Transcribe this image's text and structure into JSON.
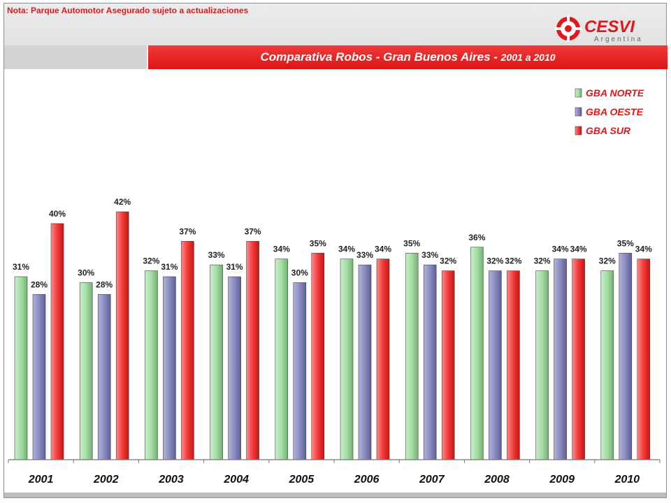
{
  "header": {
    "note": "Nota: Parque Automotor Asegurado sujeto a actualizaciones",
    "logo_name": "CESVI",
    "logo_sub": "Argentina"
  },
  "title_bar": {
    "title": "Comparativa Robos - Gran Buenos Aires -",
    "subtitle": "2001 a 2010"
  },
  "colors": {
    "norte": "#8fce8f",
    "oeste": "#7a7cb2",
    "sur": "#ee2d35",
    "accent_red": "#e3161b"
  },
  "chart_data": {
    "type": "bar",
    "title": "Comparativa Robos - Gran Buenos Aires - 2001 a 2010",
    "categories": [
      "2001",
      "2002",
      "2003",
      "2004",
      "2005",
      "2006",
      "2007",
      "2008",
      "2009",
      "2010"
    ],
    "series": [
      {
        "name": "GBA NORTE",
        "values": [
          31,
          30,
          32,
          33,
          34,
          34,
          35,
          36,
          32,
          32
        ],
        "labels": [
          "31%",
          "30%",
          "32%",
          "33%",
          "34%",
          "34%",
          "35%",
          "36%",
          "32%",
          "32%"
        ]
      },
      {
        "name": "GBA OESTE",
        "values": [
          28,
          28,
          31,
          31,
          30,
          33,
          33,
          32,
          34,
          35
        ],
        "labels": [
          "28%",
          "28%",
          "31%",
          "31%",
          "30%",
          "33%",
          "33%",
          "32%",
          "34%",
          "35%"
        ]
      },
      {
        "name": "GBA SUR",
        "values": [
          40,
          42,
          37,
          37,
          35,
          34,
          32,
          32,
          34,
          34
        ],
        "labels": [
          "40%",
          "42%",
          "37%",
          "37%",
          "35%",
          "34%",
          "32%",
          "32%",
          "34%",
          "34%"
        ]
      }
    ],
    "legend_position": "top-right",
    "grid": false,
    "ylim": [
      0,
      45
    ]
  }
}
